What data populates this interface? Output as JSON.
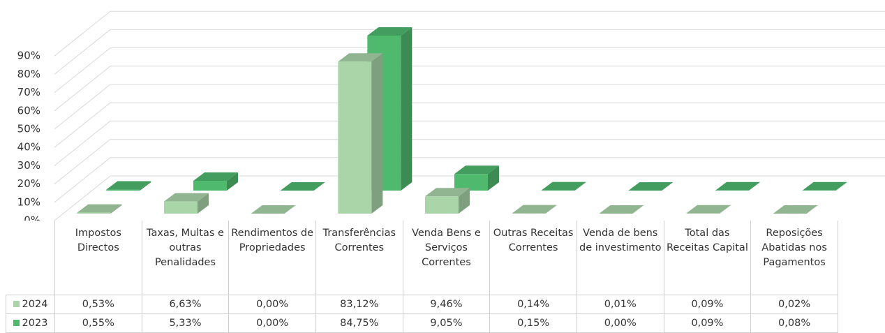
{
  "chart_data": {
    "type": "bar3d",
    "categories": [
      "Impostos Directos",
      "Taxas, Multas e outras Penalidades",
      "Rendimentos de Propriedades",
      "Transferências Correntes",
      "Venda Bens e Serviços Correntes",
      "Outras Receitas Correntes",
      "Venda de bens de investimento",
      "Total das Receitas Capital",
      "Reposições Abatidas nos Pagamentos"
    ],
    "series": [
      {
        "name": "2024",
        "color": "#a9d5a9",
        "values": [
          0.53,
          6.63,
          0.0,
          83.12,
          9.46,
          0.14,
          0.01,
          0.09,
          0.02
        ],
        "value_labels": [
          "0,53%",
          "6,63%",
          "0,00%",
          "83,12%",
          "9,46%",
          "0,14%",
          "0,01%",
          "0,09%",
          "0,02%"
        ]
      },
      {
        "name": "2023",
        "color": "#4fb96e",
        "values": [
          0.55,
          5.33,
          0.0,
          84.75,
          9.05,
          0.15,
          0.0,
          0.09,
          0.08
        ],
        "value_labels": [
          "0,55%",
          "5,33%",
          "0,00%",
          "84,75%",
          "9,05%",
          "0,15%",
          "0,00%",
          "0,09%",
          "0,08%"
        ]
      }
    ],
    "ylim": [
      0,
      100
    ],
    "yticks": [
      {
        "value": 0,
        "label": "0%"
      },
      {
        "value": 10,
        "label": "10%"
      },
      {
        "value": 20,
        "label": "20%"
      },
      {
        "value": 30,
        "label": "30%"
      },
      {
        "value": 40,
        "label": "40%"
      },
      {
        "value": 50,
        "label": "50%"
      },
      {
        "value": 60,
        "label": "60%"
      },
      {
        "value": 70,
        "label": "70%"
      },
      {
        "value": 80,
        "label": "80%"
      },
      {
        "value": 90,
        "label": "90%"
      }
    ],
    "grid": true
  }
}
